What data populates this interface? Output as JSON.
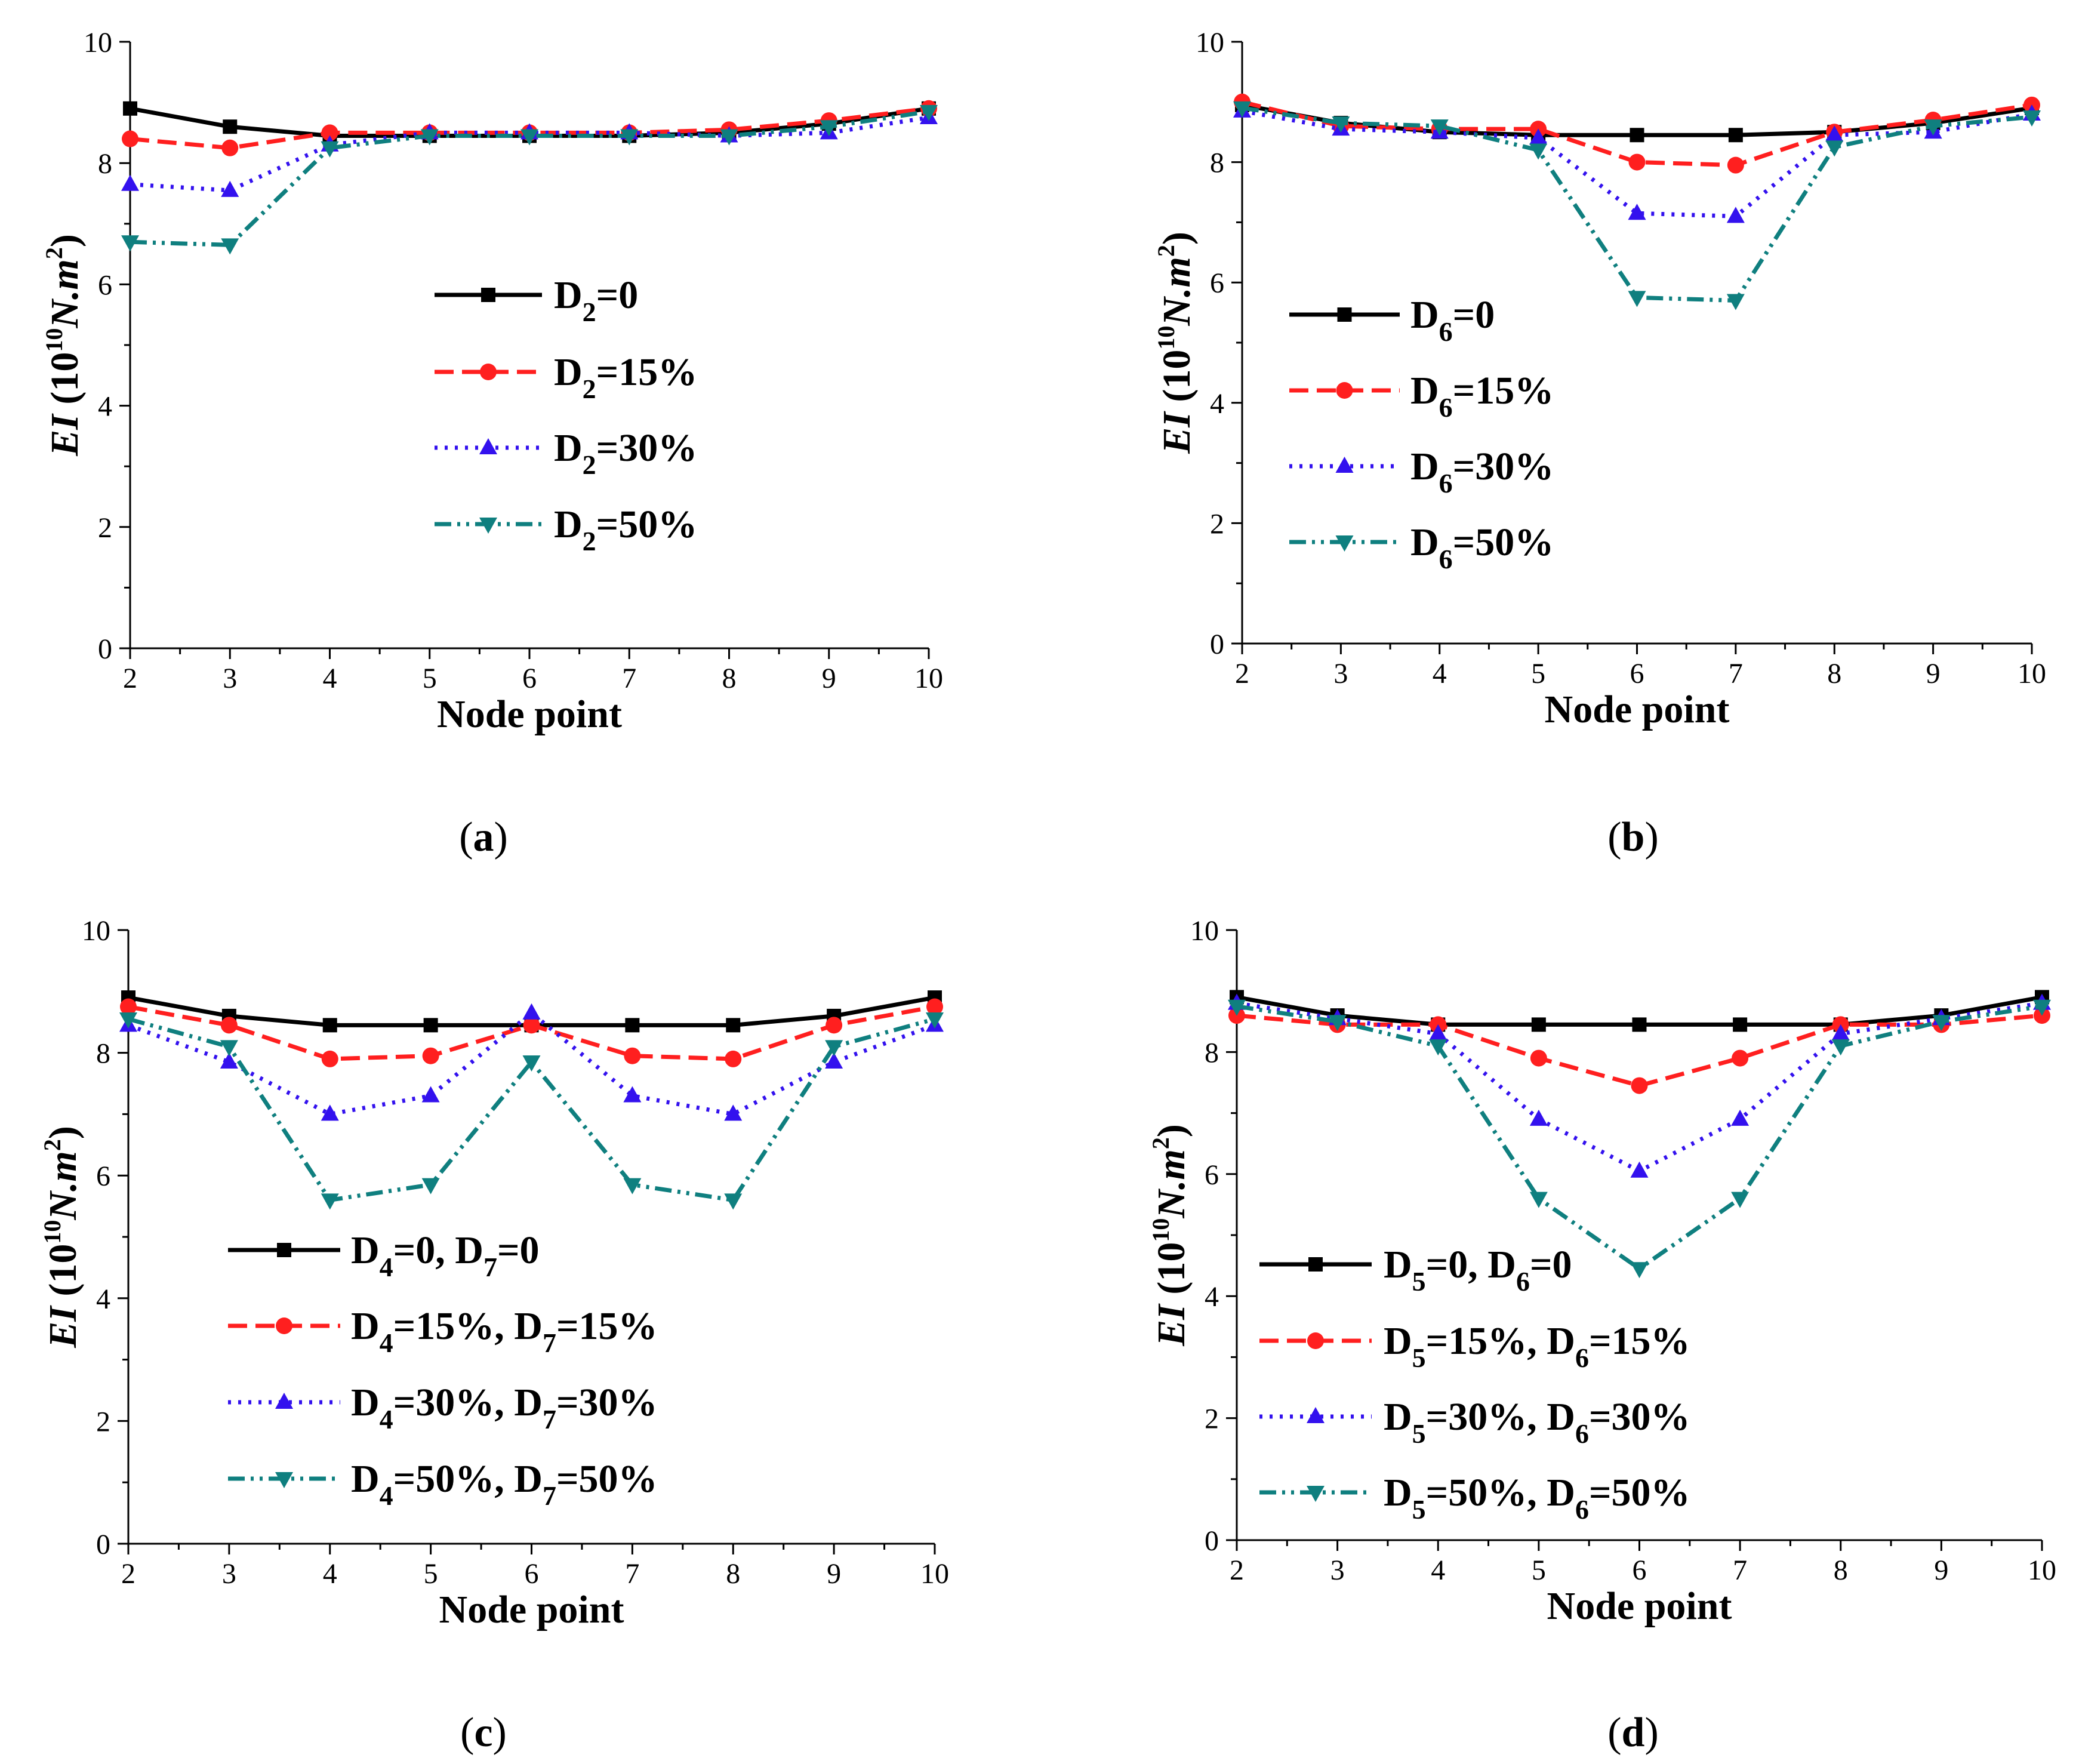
{
  "colors": {
    "series": [
      "#000000",
      "#ff1f1f",
      "#3311ee",
      "#0f7f7f"
    ],
    "axis": "#000000",
    "background": "#ffffff"
  },
  "chart_data": [
    {
      "type": "line",
      "caption": "a",
      "xlabel": "Node point",
      "ylabel": {
        "main": "EI",
        "unit_open": " (10",
        "unit_exp": "10",
        "unit_mid": "N.m",
        "unit_exp2": "2",
        "unit_close": ")"
      },
      "xlim": [
        2,
        10
      ],
      "ylim": [
        0,
        10
      ],
      "xticks": [
        "2",
        "3",
        "4",
        "5",
        "6",
        "7",
        "8",
        "9",
        "10"
      ],
      "yticks": [
        "0",
        "2",
        "4",
        "6",
        "8",
        "10"
      ],
      "legend_position": "center",
      "x": [
        2,
        3,
        4,
        5,
        6,
        7,
        8,
        9,
        10
      ],
      "series": [
        {
          "legend": [
            {
              "v": "D"
            },
            {
              "s": "2"
            },
            {
              "v": "=0"
            }
          ],
          "values": [
            8.9,
            8.6,
            8.45,
            8.45,
            8.45,
            8.45,
            8.5,
            8.65,
            8.9
          ],
          "marker": "square",
          "dash": ""
        },
        {
          "legend": [
            {
              "v": "D"
            },
            {
              "s": "2"
            },
            {
              "v": "=15%"
            }
          ],
          "values": [
            8.4,
            8.25,
            8.5,
            8.5,
            8.5,
            8.5,
            8.55,
            8.7,
            8.9
          ],
          "marker": "circle",
          "dash": "32,14"
        },
        {
          "legend": [
            {
              "v": "D"
            },
            {
              "s": "2"
            },
            {
              "v": "=30%"
            }
          ],
          "values": [
            7.65,
            7.55,
            8.3,
            8.5,
            8.5,
            8.5,
            8.45,
            8.5,
            8.75
          ],
          "marker": "triangle-up",
          "dash": "5,12"
        },
        {
          "legend": [
            {
              "v": "D"
            },
            {
              "s": "2"
            },
            {
              "v": "=50%"
            }
          ],
          "values": [
            6.7,
            6.65,
            8.25,
            8.45,
            8.45,
            8.45,
            8.45,
            8.6,
            8.85
          ],
          "marker": "triangle-down",
          "dash": "28,10,5,10,5,10"
        }
      ]
    },
    {
      "type": "line",
      "caption": "b",
      "xlabel": "Node point",
      "ylabel": {
        "main": "EI",
        "unit_open": " (10",
        "unit_exp": "10",
        "unit_mid": "N.m",
        "unit_exp2": "2",
        "unit_close": ")"
      },
      "xlim": [
        2,
        10
      ],
      "ylim": [
        0,
        10
      ],
      "xticks": [
        "2",
        "3",
        "4",
        "5",
        "6",
        "7",
        "8",
        "9",
        "10"
      ],
      "yticks": [
        "0",
        "2",
        "4",
        "6",
        "8",
        "10"
      ],
      "legend_position": "left",
      "x": [
        2,
        3,
        4,
        5,
        6,
        7,
        8,
        9,
        10
      ],
      "series": [
        {
          "legend": [
            {
              "v": "D"
            },
            {
              "s": "6"
            },
            {
              "v": "=0"
            }
          ],
          "values": [
            8.95,
            8.65,
            8.5,
            8.45,
            8.45,
            8.45,
            8.5,
            8.65,
            8.9
          ],
          "marker": "square",
          "dash": ""
        },
        {
          "legend": [
            {
              "v": "D"
            },
            {
              "s": "6"
            },
            {
              "v": "=15%"
            }
          ],
          "values": [
            9.0,
            8.6,
            8.55,
            8.55,
            8.0,
            7.95,
            8.5,
            8.7,
            8.95
          ],
          "marker": "circle",
          "dash": "32,14"
        },
        {
          "legend": [
            {
              "v": "D"
            },
            {
              "s": "6"
            },
            {
              "v": "=30%"
            }
          ],
          "values": [
            8.85,
            8.55,
            8.5,
            8.4,
            7.15,
            7.1,
            8.45,
            8.5,
            8.8
          ],
          "marker": "triangle-up",
          "dash": "5,12"
        },
        {
          "legend": [
            {
              "v": "D"
            },
            {
              "s": "6"
            },
            {
              "v": "=50%"
            }
          ],
          "values": [
            8.9,
            8.65,
            8.6,
            8.2,
            5.75,
            5.7,
            8.25,
            8.6,
            8.75
          ],
          "marker": "triangle-down",
          "dash": "28,10,5,10,5,10"
        }
      ]
    },
    {
      "type": "line",
      "caption": "c",
      "xlabel": "Node point",
      "ylabel": {
        "main": "EI",
        "unit_open": " (10",
        "unit_exp": "10",
        "unit_mid": "N.m",
        "unit_exp2": "2",
        "unit_close": ")"
      },
      "xlim": [
        2,
        10
      ],
      "ylim": [
        0,
        10
      ],
      "xticks": [
        "2",
        "3",
        "4",
        "5",
        "6",
        "7",
        "8",
        "9",
        "10"
      ],
      "yticks": [
        "0",
        "2",
        "4",
        "6",
        "8",
        "10"
      ],
      "legend_position": "lower-left",
      "x": [
        2,
        3,
        4,
        5,
        6,
        7,
        8,
        9,
        10
      ],
      "series": [
        {
          "legend": [
            {
              "v": "D"
            },
            {
              "s": "4"
            },
            {
              "v": "=0, D"
            },
            {
              "s": "7"
            },
            {
              "v": "=0"
            }
          ],
          "values": [
            8.9,
            8.6,
            8.45,
            8.45,
            8.45,
            8.45,
            8.45,
            8.6,
            8.9
          ],
          "marker": "square",
          "dash": ""
        },
        {
          "legend": [
            {
              "v": "D"
            },
            {
              "s": "4"
            },
            {
              "v": "=15%, D"
            },
            {
              "s": "7"
            },
            {
              "v": "=15%"
            }
          ],
          "values": [
            8.75,
            8.45,
            7.9,
            7.95,
            8.45,
            7.95,
            7.9,
            8.45,
            8.75
          ],
          "marker": "circle",
          "dash": "32,14"
        },
        {
          "legend": [
            {
              "v": "D"
            },
            {
              "s": "4"
            },
            {
              "v": "=30%, D"
            },
            {
              "s": "7"
            },
            {
              "v": "=30%"
            }
          ],
          "values": [
            8.45,
            7.85,
            7.0,
            7.3,
            8.65,
            7.3,
            7.0,
            7.85,
            8.45
          ],
          "marker": "triangle-up",
          "dash": "5,12"
        },
        {
          "legend": [
            {
              "v": "D"
            },
            {
              "s": "4"
            },
            {
              "v": "=50%, D"
            },
            {
              "s": "7"
            },
            {
              "v": "=50%"
            }
          ],
          "values": [
            8.55,
            8.1,
            5.6,
            5.85,
            7.85,
            5.85,
            5.6,
            8.1,
            8.55
          ],
          "marker": "triangle-down",
          "dash": "28,10,5,10,5,10"
        }
      ]
    },
    {
      "type": "line",
      "caption": "d",
      "xlabel": "Node point",
      "ylabel": {
        "main": "EI",
        "unit_open": " (10",
        "unit_exp": "10",
        "unit_mid": "N.m",
        "unit_exp2": "2",
        "unit_close": ")"
      },
      "xlim": [
        2,
        10
      ],
      "ylim": [
        0,
        10
      ],
      "xticks": [
        "2",
        "3",
        "4",
        "5",
        "6",
        "7",
        "8",
        "9",
        "10"
      ],
      "yticks": [
        "0",
        "2",
        "4",
        "6",
        "8",
        "10"
      ],
      "legend_position": "lower-left",
      "x": [
        2,
        3,
        4,
        5,
        6,
        7,
        8,
        9,
        10
      ],
      "series": [
        {
          "legend": [
            {
              "v": "D"
            },
            {
              "s": "5"
            },
            {
              "v": "=0, D"
            },
            {
              "s": "6"
            },
            {
              "v": "=0"
            }
          ],
          "values": [
            8.9,
            8.6,
            8.45,
            8.45,
            8.45,
            8.45,
            8.45,
            8.6,
            8.9
          ],
          "marker": "square",
          "dash": ""
        },
        {
          "legend": [
            {
              "v": "D"
            },
            {
              "s": "5"
            },
            {
              "v": "=15%, D"
            },
            {
              "s": "6"
            },
            {
              "v": "=15%"
            }
          ],
          "values": [
            8.6,
            8.45,
            8.45,
            7.9,
            7.45,
            7.9,
            8.45,
            8.45,
            8.6
          ],
          "marker": "circle",
          "dash": "32,14"
        },
        {
          "legend": [
            {
              "v": "D"
            },
            {
              "s": "5"
            },
            {
              "v": "=30%, D"
            },
            {
              "s": "6"
            },
            {
              "v": "=30%"
            }
          ],
          "values": [
            8.8,
            8.55,
            8.3,
            6.9,
            6.05,
            6.9,
            8.3,
            8.55,
            8.8
          ],
          "marker": "triangle-up",
          "dash": "5,12"
        },
        {
          "legend": [
            {
              "v": "D"
            },
            {
              "s": "5"
            },
            {
              "v": "=50%, D"
            },
            {
              "s": "6"
            },
            {
              "v": "=50%"
            }
          ],
          "values": [
            8.75,
            8.5,
            8.1,
            5.6,
            4.45,
            5.6,
            8.1,
            8.5,
            8.75
          ],
          "marker": "triangle-down",
          "dash": "28,10,5,10,5,10"
        }
      ]
    }
  ]
}
